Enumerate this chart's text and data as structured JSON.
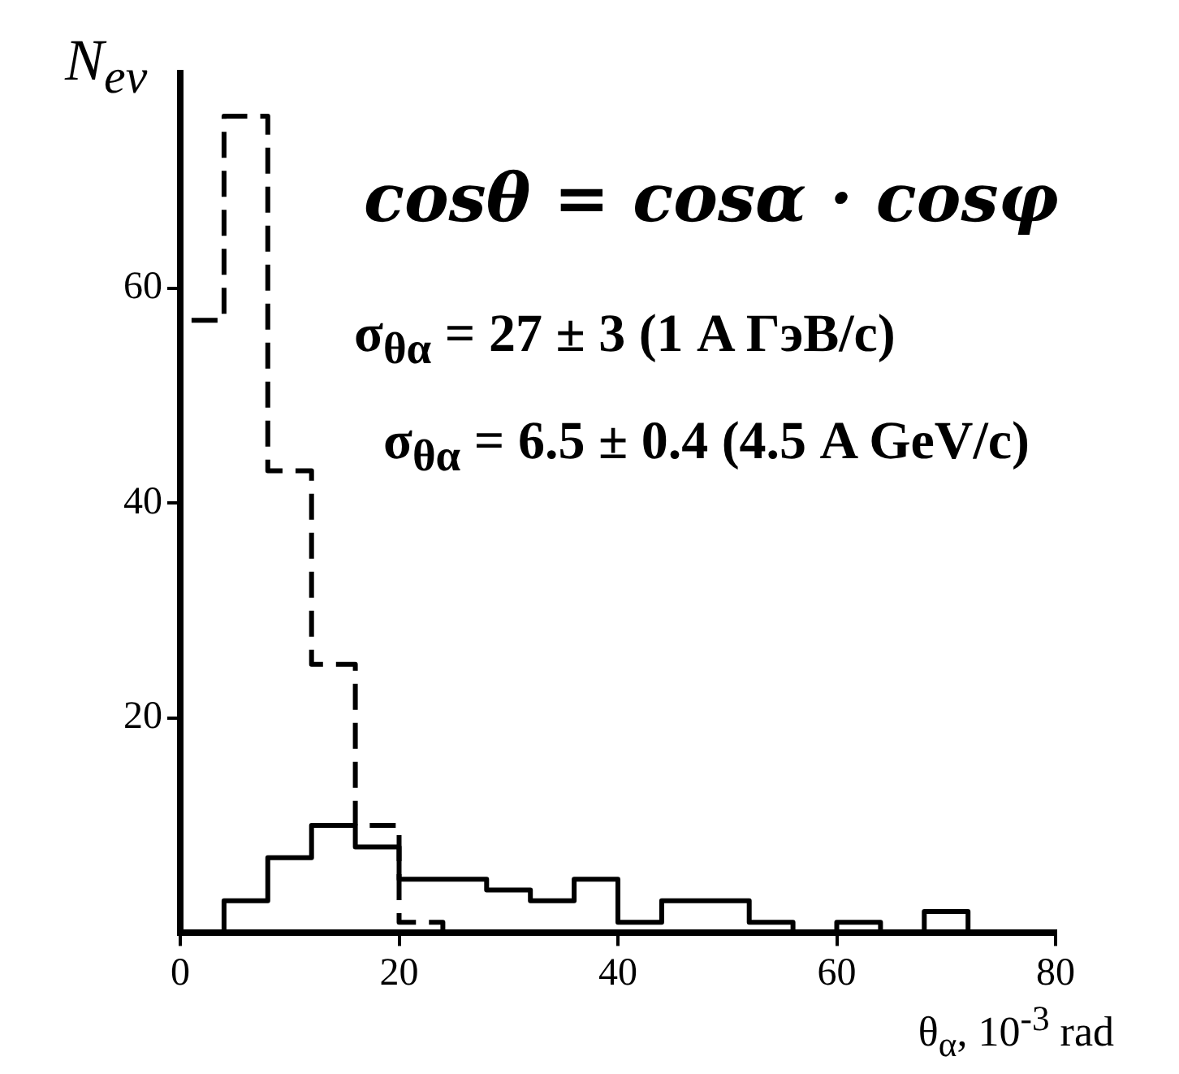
{
  "chart_data": {
    "type": "histogram",
    "xlabel": "θ$_{α}$, 10$^{-3}$ rad",
    "ylabel": "N$_{ev}$",
    "annotations": [
      "cosθ = cosα · cosφ",
      "σ$_{θα}$ = 27 ± 3 (1 A ГэВ/c)",
      "σ$_{θα}$ = 6.5 ± 0.4 (4.5 A GeV/c)"
    ],
    "bins": [
      0,
      4,
      8,
      12,
      16,
      20,
      24,
      28,
      32,
      36,
      40,
      44,
      48,
      52,
      56,
      60,
      64,
      68,
      72,
      76,
      80
    ],
    "series": [
      {
        "color": "#000000",
        "line_style": "dashed",
        "values": [
          57,
          76,
          43,
          25,
          10,
          1,
          0,
          0,
          0,
          0,
          0,
          0,
          0,
          0,
          0,
          0,
          0,
          0,
          0,
          0
        ]
      },
      {
        "color": "#000000",
        "line_style": "solid",
        "values": [
          0,
          3,
          7,
          10,
          8,
          5,
          5,
          4,
          3,
          5,
          1,
          3,
          3,
          1,
          0,
          1,
          0,
          2,
          0,
          0
        ]
      }
    ],
    "xlim": [
      0,
      80
    ],
    "xticks": [
      0,
      20,
      40,
      60,
      80
    ],
    "ylim": [
      0,
      80
    ],
    "yticks": [
      20,
      40,
      60
    ],
    "grid": false,
    "legend": false
  }
}
